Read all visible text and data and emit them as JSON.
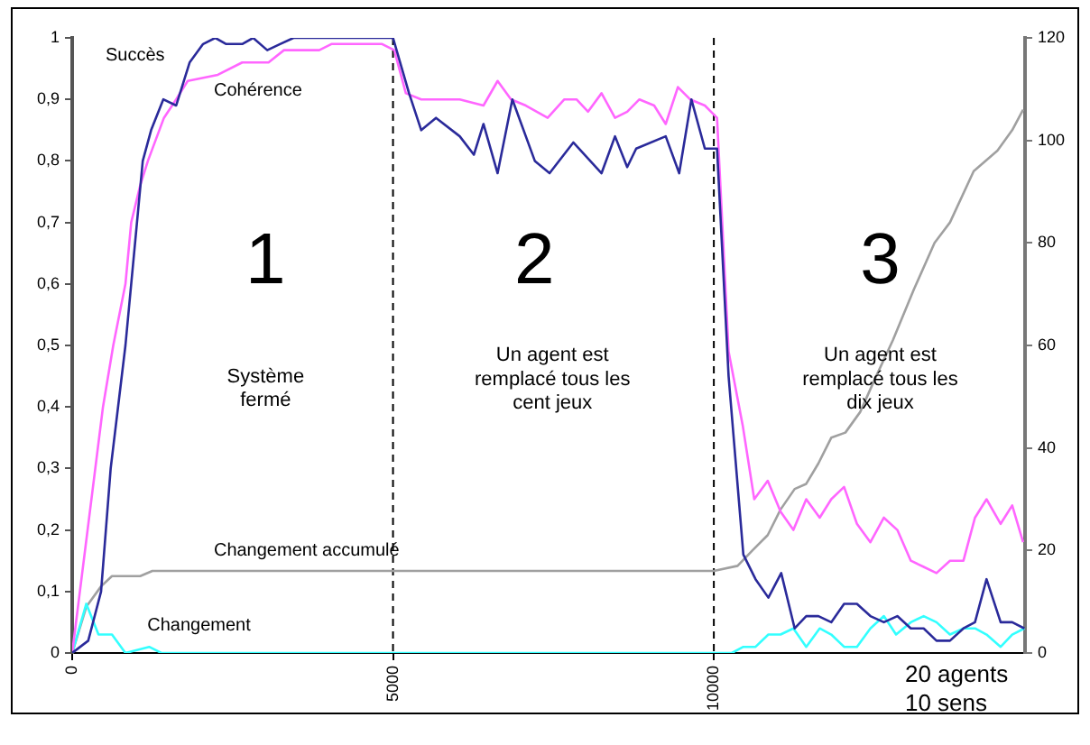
{
  "chart_data": {
    "type": "line",
    "xlim": [
      0,
      14850
    ],
    "xticks": [
      0,
      5000,
      10000
    ],
    "ylim": [
      0,
      1
    ],
    "yticks": [
      0,
      {
        "value": 0.1,
        "label": "0,1"
      },
      {
        "value": 0.2,
        "label": "0,2"
      },
      {
        "value": 0.3,
        "label": "0,3"
      },
      {
        "value": 0.4,
        "label": "0,4"
      },
      {
        "value": 0.5,
        "label": "0,5"
      },
      {
        "value": 0.6,
        "label": "0,6"
      },
      {
        "value": 0.7,
        "label": "0,7"
      },
      {
        "value": 0.8,
        "label": "0,8"
      },
      {
        "value": 0.9,
        "label": "0,9"
      },
      1
    ],
    "y2lim": [
      0,
      120
    ],
    "y2ticks": [
      0,
      20,
      40,
      60,
      80,
      100,
      120
    ],
    "grid": false,
    "legend": false,
    "marker": "none",
    "line_style": "solid",
    "series": [
      {
        "name": "Succès",
        "color": "#2a2a9a",
        "x": [
          0,
          250,
          450,
          600,
          830,
          1100,
          1230,
          1420,
          1620,
          1830,
          2040,
          2230,
          2400,
          2650,
          2820,
          3040,
          3240,
          3450,
          5000,
          5250,
          5440,
          5670,
          6040,
          6260,
          6410,
          6630,
          6860,
          7210,
          7440,
          7810,
          8250,
          8460,
          8650,
          8790,
          9250,
          9460,
          9650,
          9860,
          10050,
          10230,
          10460,
          10650,
          10850,
          11050,
          11260,
          11440,
          11630,
          11830,
          12030,
          12230,
          12440,
          12650,
          12860,
          13070,
          13270,
          13470,
          13680,
          13890,
          14070,
          14250,
          14470,
          14650,
          14840
        ],
        "values": [
          0,
          0.02,
          0.1,
          0.3,
          0.5,
          0.8,
          0.85,
          0.9,
          0.89,
          0.96,
          0.99,
          1.0,
          0.99,
          0.99,
          1.0,
          0.98,
          0.99,
          1.0,
          1.0,
          0.91,
          0.85,
          0.87,
          0.84,
          0.81,
          0.86,
          0.78,
          0.9,
          0.8,
          0.78,
          0.83,
          0.78,
          0.84,
          0.79,
          0.82,
          0.84,
          0.78,
          0.9,
          0.82,
          0.82,
          0.45,
          0.16,
          0.12,
          0.09,
          0.13,
          0.04,
          0.06,
          0.06,
          0.05,
          0.08,
          0.08,
          0.06,
          0.05,
          0.06,
          0.04,
          0.04,
          0.02,
          0.02,
          0.04,
          0.05,
          0.12,
          0.05,
          0.05,
          0.04
        ]
      },
      {
        "name": "Cohérence",
        "color": "#ff66ff",
        "x": [
          0,
          480,
          640,
          830,
          920,
          1060,
          1180,
          1430,
          1620,
          1800,
          2270,
          2650,
          3060,
          3300,
          3850,
          4040,
          4830,
          5020,
          5200,
          5440,
          5810,
          6040,
          6410,
          6630,
          6840,
          7070,
          7410,
          7670,
          7860,
          8040,
          8250,
          8460,
          8650,
          8840,
          9070,
          9250,
          9440,
          9630,
          9860,
          10050,
          10230,
          10450,
          10630,
          10840,
          11040,
          11240,
          11440,
          11650,
          11830,
          12030,
          12230,
          12440,
          12650,
          12860,
          13070,
          13270,
          13470,
          13680,
          13890,
          14070,
          14250,
          14470,
          14650,
          14820
        ],
        "values": [
          0,
          0.4,
          0.5,
          0.6,
          0.7,
          0.76,
          0.8,
          0.87,
          0.9,
          0.93,
          0.94,
          0.96,
          0.96,
          0.98,
          0.98,
          0.99,
          0.99,
          0.98,
          0.91,
          0.9,
          0.9,
          0.9,
          0.89,
          0.93,
          0.9,
          0.89,
          0.87,
          0.9,
          0.9,
          0.88,
          0.91,
          0.87,
          0.88,
          0.9,
          0.89,
          0.86,
          0.92,
          0.9,
          0.89,
          0.87,
          0.49,
          0.37,
          0.25,
          0.28,
          0.23,
          0.2,
          0.25,
          0.22,
          0.25,
          0.27,
          0.21,
          0.18,
          0.22,
          0.2,
          0.15,
          0.14,
          0.13,
          0.15,
          0.15,
          0.22,
          0.25,
          0.21,
          0.24,
          0.18
        ]
      },
      {
        "name": "Changement",
        "color": "#33ffff",
        "x": [
          0,
          220,
          410,
          620,
          830,
          1200,
          1390,
          10000,
          10280,
          10460,
          10650,
          10850,
          11040,
          11240,
          11440,
          11650,
          11830,
          12030,
          12230,
          12440,
          12650,
          12840,
          13070,
          13270,
          13470,
          13680,
          13890,
          14070,
          14250,
          14470,
          14650,
          14840
        ],
        "values": [
          0,
          0.08,
          0.03,
          0.03,
          0,
          0.01,
          0,
          0,
          0,
          0.01,
          0.01,
          0.03,
          0.03,
          0.04,
          0.01,
          0.04,
          0.03,
          0.01,
          0.01,
          0.04,
          0.06,
          0.03,
          0.05,
          0.06,
          0.05,
          0.03,
          0.04,
          0.04,
          0.03,
          0.01,
          0.03,
          0.04
        ]
      },
      {
        "name": "Changement accumulé",
        "color": "#a0a0a0",
        "axis": "y2",
        "x": [
          0,
          220,
          450,
          620,
          1060,
          1250,
          10000,
          10370,
          10600,
          10840,
          11040,
          11260,
          11440,
          11630,
          11830,
          12050,
          12280,
          12530,
          12790,
          13120,
          13440,
          13680,
          14050,
          14420,
          14650,
          14820
        ],
        "values": [
          0,
          9,
          13,
          15,
          15,
          16,
          16,
          17,
          20,
          23,
          28,
          32,
          33,
          37,
          42,
          43,
          47,
          54,
          61,
          71,
          80,
          84,
          94,
          98,
          102,
          106
        ]
      }
    ],
    "ref_lines": [
      {
        "axis": "x",
        "value": 5000,
        "color": "#000000",
        "line_style": "dashed"
      },
      {
        "axis": "x",
        "value": 10000,
        "color": "#000000",
        "line_style": "dashed"
      }
    ],
    "annotations": [
      "1",
      "2",
      "3",
      "Système fermé",
      "Un agent est remplacé tous les cent jeux",
      "Un agent est remplacé tous les dix jeux",
      "20 agents 10 sens"
    ]
  }
}
